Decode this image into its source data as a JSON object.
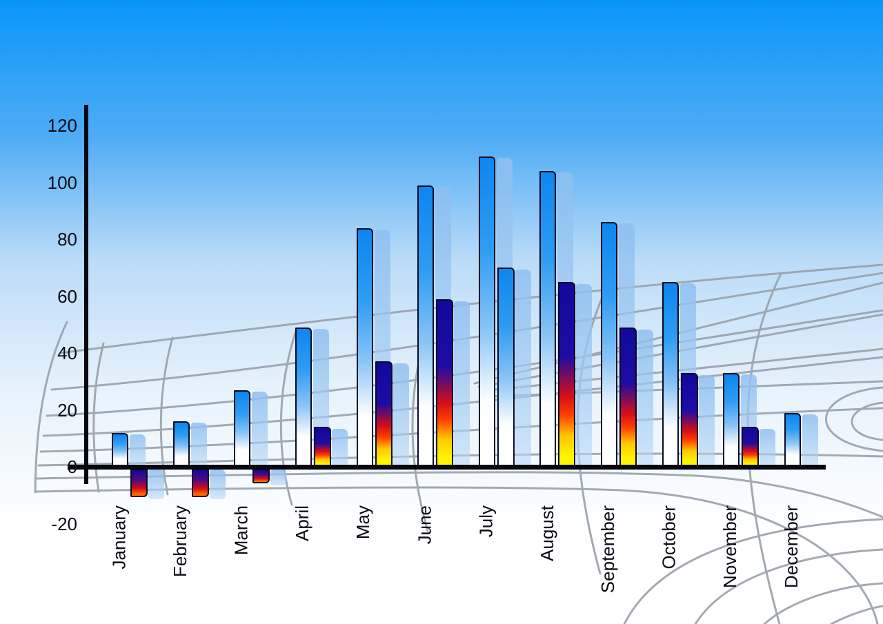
{
  "chart_data": {
    "type": "bar",
    "title": "",
    "xlabel": "",
    "ylabel": "",
    "categories": [
      "January",
      "February",
      "March",
      "April",
      "May",
      "June",
      "July",
      "August",
      "September",
      "October",
      "November",
      "December"
    ],
    "series": [
      {
        "name": "blue-gradient-bars",
        "values": [
          12,
          16,
          27,
          49,
          84,
          99,
          109,
          104,
          86,
          65,
          33,
          19
        ]
      },
      {
        "name": "multicolor-bars",
        "values": [
          -10,
          -10,
          -5,
          14,
          37,
          59,
          70,
          65,
          49,
          33,
          14,
          null
        ],
        "bar_styles": [
          "fireneg",
          "fireneg",
          "fireneg",
          "fire",
          "fire",
          "fire",
          "blue",
          "fire",
          "fire",
          "fire",
          "fire",
          null
        ]
      }
    ],
    "yticks": [
      120,
      100,
      80,
      60,
      40,
      20,
      0,
      -20
    ],
    "ylim": [
      -20,
      120
    ],
    "grid": "perspective floor mesh (decorative)",
    "legend_position": "none"
  },
  "colors": {
    "sky_top": "#0996f8",
    "sky_bottom": "#ffffff",
    "grid_line": "#99a1ab",
    "axis": "#07070f",
    "tick_label": "#0b0b16",
    "bar_blue_top": "#0d86ef",
    "bar_blue_mid": "#2f9cf2",
    "bar_navy": "#12089e",
    "bar_red": "#d50e17",
    "bar_yellow": "#fff400",
    "bar_shadow": "#a9c9ef"
  }
}
